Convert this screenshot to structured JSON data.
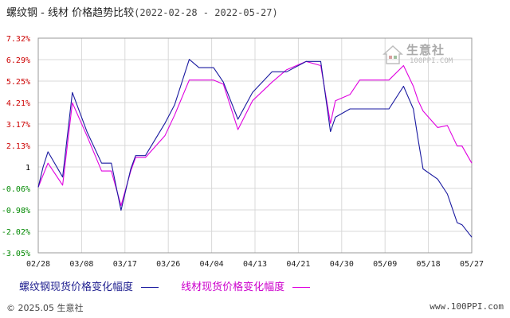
{
  "title": {
    "main": "螺纹钢 - 线材 价格趋势比较",
    "range": "(2022-02-28 - 2022-05-27)"
  },
  "colors": {
    "series1": "#1a1aa0",
    "series2": "#e000e0",
    "grid": "#d8d8d8",
    "axis_positive": "#cc0000",
    "axis_negative": "#008800",
    "axis_zero": "#000000"
  },
  "legend": {
    "series1": "螺纹钢现货价格变化幅度",
    "series2": "线材现货价格变化幅度"
  },
  "watermark": {
    "text": "生意社",
    "sub": "100PPI.COM"
  },
  "footer": {
    "copyright": "© 2025.05 生意社",
    "site": "www.100PPI.com"
  },
  "chart_data": {
    "type": "line",
    "title": "螺纹钢 - 线材 价格趋势比较",
    "xlabel": "",
    "ylabel": "",
    "x_tick_labels": [
      "02/28",
      "03/08",
      "03/17",
      "03/26",
      "04/04",
      "04/13",
      "04/21",
      "04/30",
      "05/09",
      "05/18",
      "05/27"
    ],
    "y_ticks": [
      7.32,
      6.29,
      5.25,
      4.21,
      3.17,
      2.13,
      1,
      -0.06,
      -0.98,
      -2.02,
      -3.05
    ],
    "y_tick_labels": [
      "7.32%",
      "6.29%",
      "5.25%",
      "4.21%",
      "3.17%",
      "2.13%",
      "1",
      "-0.06%",
      "-0.98%",
      "-2.02%",
      "-3.05%"
    ],
    "ylim": [
      -3.05,
      7.32
    ],
    "x_range": [
      0,
      89
    ],
    "grid": true,
    "legend_position": "bottom",
    "series": [
      {
        "name": "螺纹钢现货价格变化幅度",
        "x": [
          0,
          1,
          2,
          5,
          7,
          10,
          13,
          15,
          17,
          19,
          20,
          22,
          26,
          28,
          31,
          33,
          36,
          38,
          41,
          44,
          48,
          51,
          55,
          58,
          60,
          61,
          64,
          66,
          67,
          69,
          72,
          75,
          77,
          78,
          79,
          82,
          84,
          86,
          87,
          89
        ],
        "y": [
          0,
          1.0,
          1.8,
          0.5,
          4.7,
          2.8,
          1.2,
          1.2,
          -1.0,
          0.9,
          1.6,
          1.6,
          3.2,
          4.1,
          6.3,
          5.9,
          5.9,
          5.2,
          3.4,
          4.7,
          5.7,
          5.7,
          6.2,
          6.2,
          2.8,
          3.5,
          3.9,
          3.9,
          3.9,
          3.9,
          3.9,
          5.0,
          3.9,
          2.4,
          0.9,
          0.4,
          -0.3,
          -1.6,
          -1.7,
          -2.3
        ]
      },
      {
        "name": "线材现货价格变化幅度",
        "x": [
          0,
          1,
          2,
          5,
          7,
          10,
          13,
          15,
          17,
          19,
          20,
          22,
          26,
          28,
          31,
          33,
          36,
          38,
          41,
          44,
          48,
          51,
          55,
          58,
          60,
          61,
          64,
          66,
          67,
          69,
          72,
          75,
          77,
          78,
          79,
          82,
          84,
          86,
          87,
          89
        ],
        "y": [
          0,
          0.6,
          1.2,
          0.1,
          4.2,
          2.6,
          0.8,
          0.8,
          -0.8,
          0.8,
          1.5,
          1.5,
          2.6,
          3.6,
          5.3,
          5.3,
          5.3,
          5.1,
          2.9,
          4.3,
          5.2,
          5.8,
          6.2,
          6.0,
          3.2,
          4.3,
          4.6,
          5.3,
          5.3,
          5.3,
          5.3,
          6.0,
          5.0,
          4.3,
          3.8,
          3.0,
          3.1,
          2.1,
          2.1,
          1.2
        ]
      }
    ]
  }
}
